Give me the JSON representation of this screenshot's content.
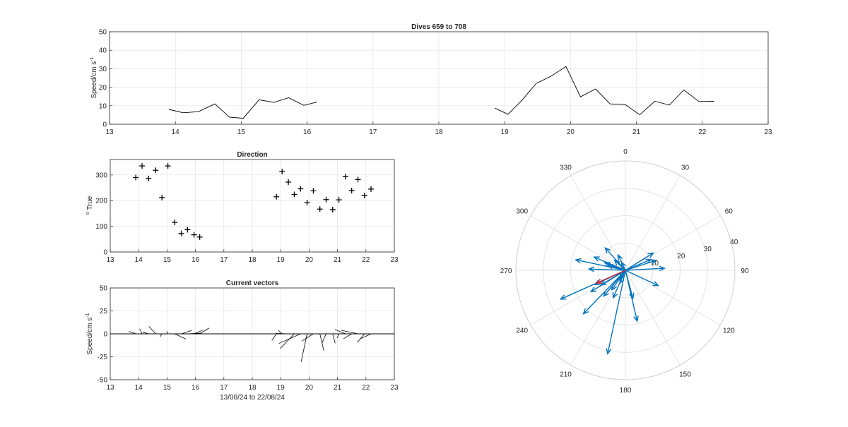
{
  "colors": {
    "axis": "#262626",
    "grid": "#e3e3e3",
    "vector": "#0072bd",
    "mean_vector": "#d9232e",
    "line": "#000000"
  },
  "chart_data": [
    {
      "id": "speed",
      "type": "line",
      "title": "Dives 659 to 708",
      "xlabel": "",
      "ylabel": "Speed/cm s",
      "ylabel_sup": "-1",
      "xlim": [
        13,
        23
      ],
      "ylim": [
        0,
        50
      ],
      "xticks": [
        13,
        14,
        15,
        16,
        17,
        18,
        19,
        20,
        21,
        22,
        23
      ],
      "yticks": [
        0,
        10,
        20,
        30,
        40,
        50
      ],
      "grid": true,
      "segments": [
        {
          "x": [
            13.9,
            14.12,
            14.35,
            14.6,
            14.82,
            15.03,
            15.27,
            15.5,
            15.72,
            15.95,
            16.15
          ],
          "y": [
            8,
            6.2,
            6.8,
            11,
            3.8,
            3.2,
            13.2,
            11.8,
            14.3,
            10.2,
            12
          ]
        },
        {
          "x": [
            18.85,
            19.05,
            19.27,
            19.48,
            19.7,
            19.93,
            20.15,
            20.38,
            20.6,
            20.83,
            21.05,
            21.28,
            21.5,
            21.72,
            21.95,
            22.18
          ],
          "y": [
            8.7,
            5.4,
            13.3,
            22.1,
            25.9,
            31.2,
            14.8,
            19.1,
            11,
            10.6,
            5.1,
            12.4,
            10.4,
            18.5,
            12.3,
            12.4
          ]
        }
      ]
    },
    {
      "id": "direction",
      "type": "scatter",
      "title": "Direction",
      "xlabel": "",
      "ylabel": "True",
      "ylabel_sup": "o",
      "xlim": [
        13,
        23
      ],
      "ylim": [
        0,
        360
      ],
      "xticks": [
        13,
        14,
        15,
        16,
        17,
        18,
        19,
        20,
        21,
        22,
        23
      ],
      "yticks": [
        0,
        100,
        200,
        300
      ],
      "grid": true,
      "marker": "+",
      "x": [
        13.9,
        14.12,
        14.35,
        14.6,
        14.82,
        15.03,
        15.27,
        15.5,
        15.72,
        15.95,
        16.15,
        18.85,
        19.05,
        19.27,
        19.48,
        19.7,
        19.93,
        20.15,
        20.38,
        20.6,
        20.83,
        21.05,
        21.28,
        21.5,
        21.72,
        21.95,
        22.18
      ],
      "y": [
        290,
        335,
        286,
        318,
        212,
        335,
        115,
        72,
        87,
        67,
        58,
        215,
        313,
        272,
        224,
        246,
        192,
        238,
        167,
        204,
        165,
        203,
        293,
        239,
        282,
        220,
        245
      ]
    },
    {
      "id": "current-vectors",
      "type": "quiver",
      "title": "Current vectors",
      "xlabel": "13/08/24 to 22/08/24",
      "ylabel": "Speed/cm s",
      "ylabel_sup": "-1",
      "xlim": [
        13,
        23
      ],
      "ylim": [
        -50,
        50
      ],
      "xticks": [
        13,
        14,
        15,
        16,
        17,
        18,
        19,
        20,
        21,
        22,
        23
      ],
      "yticks": [
        -50,
        -25,
        0,
        25,
        50
      ],
      "grid": true
    },
    {
      "id": "polar",
      "type": "compass",
      "title": "",
      "rmax": 40,
      "rticks": [
        10,
        20,
        30,
        40
      ],
      "angle_ticks": [
        0,
        30,
        60,
        90,
        120,
        150,
        180,
        210,
        240,
        270,
        300,
        330
      ],
      "grid": true,
      "mean_vector": {
        "direction": 246,
        "speed": 11.5
      }
    }
  ]
}
